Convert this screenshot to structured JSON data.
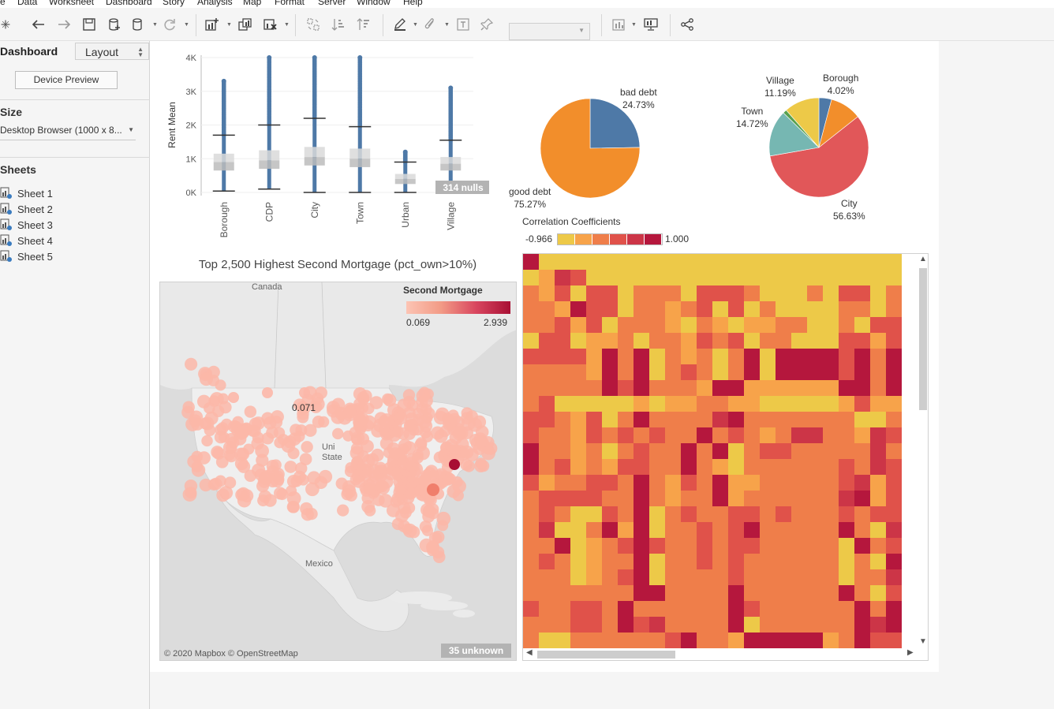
{
  "menu": [
    "e",
    "Data",
    "Worksheet",
    "Dashboard",
    "Story",
    "Analysis",
    "Map",
    "Format",
    "Server",
    "Window",
    "Help"
  ],
  "left_panel": {
    "tab_dashboard": "Dashboard",
    "tab_layout": "Layout",
    "device_preview": "Device Preview",
    "size_heading": "Size",
    "size_value": "Desktop Browser (1000 x 8...",
    "sheets_heading": "Sheets",
    "sheets": [
      "Sheet 1",
      "Sheet 2",
      "Sheet 3",
      "Sheet 4",
      "Sheet 5"
    ]
  },
  "chart_data": [
    {
      "type": "boxplot",
      "ylabel": "Rent Mean",
      "categories": [
        "Borough",
        "CDP",
        "City",
        "Town",
        "Urban",
        "Village"
      ],
      "yticks": [
        "0K",
        "1K",
        "2K",
        "3K",
        "4K"
      ],
      "ylim": [
        0,
        4000
      ],
      "color": "#4e79a7",
      "boxes": [
        {
          "category": "Borough",
          "whisker_low": 40,
          "q1": 650,
          "median": 900,
          "q3": 1150,
          "whisker_high": 1700,
          "outlier_max": 3300
        },
        {
          "category": "CDP",
          "whisker_low": 100,
          "q1": 700,
          "median": 950,
          "q3": 1250,
          "whisker_high": 2000,
          "outlier_max": 4000
        },
        {
          "category": "City",
          "whisker_low": 0,
          "q1": 800,
          "median": 1050,
          "q3": 1350,
          "whisker_high": 2200,
          "outlier_max": 4000
        },
        {
          "category": "Town",
          "whisker_low": 0,
          "q1": 750,
          "median": 1000,
          "q3": 1300,
          "whisker_high": 1950,
          "outlier_max": 4000
        },
        {
          "category": "Urban",
          "whisker_low": 0,
          "q1": 250,
          "median": 400,
          "q3": 550,
          "whisker_high": 900,
          "outlier_max": 1200
        },
        {
          "category": "Village",
          "whisker_low": 0,
          "q1": 650,
          "median": 850,
          "q3": 1050,
          "whisker_high": 1550,
          "outlier_max": 3100
        }
      ],
      "nulls_badge": "314 nulls"
    },
    {
      "type": "pie",
      "slices": [
        {
          "label": "bad debt",
          "value": 24.73,
          "display": "24.73%",
          "color": "#4e79a7"
        },
        {
          "label": "good debt",
          "value": 75.27,
          "display": "75.27%",
          "color": "#f28e2b"
        }
      ]
    },
    {
      "type": "pie",
      "slices": [
        {
          "label": "Borough",
          "value": 4.02,
          "display": "4.02%",
          "color": "#4e79a7"
        },
        {
          "label": "",
          "value": 10.0,
          "display": "",
          "color": "#f28e2b"
        },
        {
          "label": "City",
          "value": 56.63,
          "display": "56.63%",
          "color": "#e15759"
        },
        {
          "label": "Town",
          "value": 14.72,
          "display": "14.72%",
          "color": "#76b7b2"
        },
        {
          "label": "",
          "value": 1.23,
          "display": "",
          "color": "#59a14f"
        },
        {
          "label": "Village",
          "value": 11.19,
          "display": "11.19%",
          "color": "#edc948"
        }
      ]
    },
    {
      "type": "heatmap",
      "legend_title": "Correlation Coefficients",
      "min_label": "-0.966",
      "max_label": "1.000",
      "palette": [
        "#edc948",
        "#f7a34a",
        "#ef7e4a",
        "#e0524a",
        "#cc3547",
        "#b5173d"
      ],
      "grid": [
        "500000000000000000000000",
        "014300000000000000000000",
        "213033022203332000203302",
        "221533022123030200002202",
        "223130222102101122002033",
        "033011202213230220003313",
        "333315250212025055553525",
        "222215250232025055553525",
        "222225352221551111115525",
        "230000010112211000001311",
        "332130252222452222222002",
        "322132323225232124422143",
        "522120232252502332222242",
        "523121332252102222223243",
        "312233252132511222223413",
        "233332252122512222224513",
        "232003250232233232223233",
        "240025150223235222225204",
        "225012353223233222220523",
        "232012250223232222220205",
        "222012350222232222220224",
        "222222255222252222225203",
        "322332522222253222222525",
        "222332534222250222222545",
        "200222222352215555512533",
        "232223222233333333214034",
        "212142215235222211525514",
        "214222222522222222122520",
        "222122222222222222222205"
      ]
    }
  ],
  "map": {
    "title": "Top 2,500  Highest Second Mortgage (pct_own>10%)",
    "legend_title": "Second Mortgage",
    "legend_min": "0.069",
    "legend_max": "2.939",
    "value_label": "0.071",
    "attribution": "© 2020 Mapbox © OpenStreetMap",
    "unknown_badge": "35 unknown",
    "places": {
      "canada": "Canada",
      "us": "Uni",
      "us2": "State",
      "mexico": "Mexico"
    }
  }
}
